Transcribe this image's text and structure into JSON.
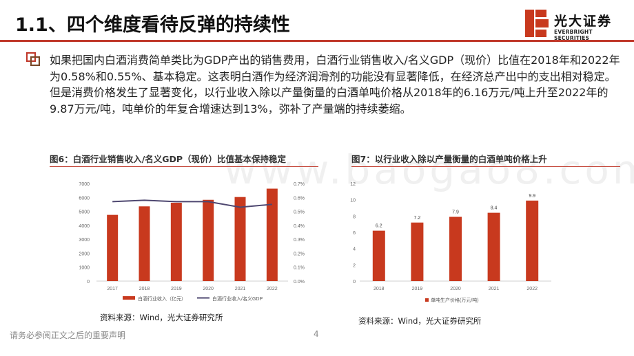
{
  "title": "1.1、四个维度看待反弹的持续性",
  "logo": {
    "cn": "光大证券",
    "en": "EVERBRIGHT SECURITIES"
  },
  "paragraph": "如果把国内白酒消费简单类比为GDP产出的销售费用，白酒行业销售收入/名义GDP（现价）比值在2018年和2022年为0.58%和0.55%、基本稳定。这表明白酒作为经济润滑剂的功能没有显著降低，在经济总产出中的支出相对稳定。但是消费价格发生了显著变化，以行业收入除以产量衡量的白酒单吨价格从2018年的6.16万元/吨上升至2022年的9.87万元/吨，吨单价的年复合增速达到13%，弥补了产量端的持续萎缩。",
  "watermark": "www.baogao8.com",
  "figures": {
    "fig6": {
      "title": "图6：白酒行业销售收入/名义GDP（现价）比值基本保持稳定",
      "source": "资料来源：Wind，光大证券研究所"
    },
    "fig7": {
      "title": "图7：以行业收入除以产量衡量的白酒单吨价格上升",
      "source": "资料来源：Wind，光大证券研究所"
    }
  },
  "footer": {
    "disclaimer": "请务必参阅正文之后的重要声明",
    "page": "4"
  },
  "colors": {
    "accent": "#c0392b",
    "bar": "#c8391e",
    "line": "#4e4770"
  },
  "chart_data": [
    {
      "type": "bar",
      "categories": [
        "2017",
        "2018",
        "2019",
        "2020",
        "2021",
        "2022"
      ],
      "series": [
        {
          "name": "白酒行业收入（亿元）",
          "type": "bar",
          "axis": "left",
          "values": [
            4750,
            5360,
            5620,
            5830,
            6030,
            6630
          ]
        },
        {
          "name": "白酒行业收入/名义GDP",
          "type": "line",
          "axis": "right",
          "values": [
            0.57,
            0.58,
            0.57,
            0.57,
            0.53,
            0.55
          ]
        }
      ],
      "yticks": [
        "0",
        "1000",
        "2000",
        "3000",
        "4000",
        "5000",
        "6000",
        "7000"
      ],
      "y2ticks": [
        "0.0%",
        "0.1%",
        "0.2%",
        "0.3%",
        "0.4%",
        "0.5%",
        "0.6%",
        "0.7%"
      ],
      "ylim": [
        0,
        7000
      ],
      "y2lim": [
        0,
        0.7
      ],
      "legend": "bottom"
    },
    {
      "type": "bar",
      "categories": [
        "2018",
        "2019",
        "2020",
        "2021",
        "2022"
      ],
      "series": [
        {
          "name": "单吨生产价格(万元/吨)",
          "values": [
            6.2,
            7.2,
            7.9,
            8.4,
            9.9
          ]
        }
      ],
      "data_labels": [
        "6.2",
        "7.2",
        "7.9",
        "8.4",
        "9.9"
      ],
      "yticks": [
        "0",
        "2",
        "4",
        "6",
        "8",
        "10",
        "12"
      ],
      "ylim": [
        0,
        12
      ],
      "legend": "bottom"
    }
  ]
}
